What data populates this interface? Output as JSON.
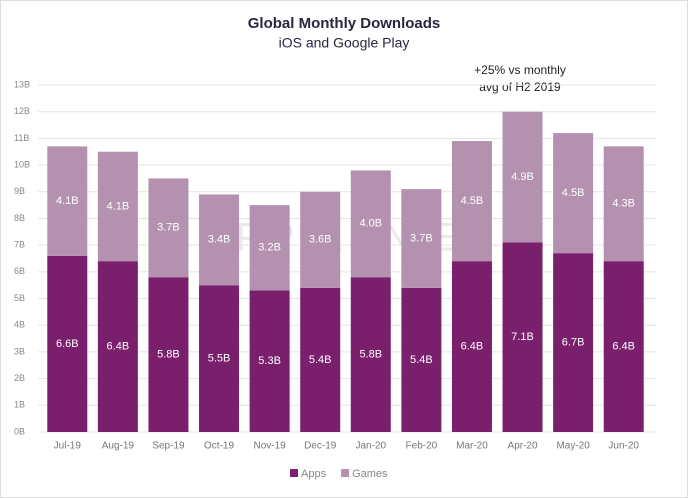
{
  "chart_data": {
    "type": "stacked-bar",
    "title": "Global Monthly Downloads",
    "subtitle": "iOS and Google Play",
    "annotation": [
      "+25% vs monthly",
      "avg of H2 2019"
    ],
    "watermark": "APP ANNIE",
    "categories": [
      "Jul-19",
      "Aug-19",
      "Sep-19",
      "Oct-19",
      "Nov-19",
      "Dec-19",
      "Jan-20",
      "Feb-20",
      "Mar-20",
      "Apr-20",
      "May-20",
      "Jun-20"
    ],
    "series": [
      {
        "name": "Apps",
        "color": "#7a1f6c",
        "values": [
          6.6,
          6.4,
          5.8,
          5.5,
          5.3,
          5.4,
          5.8,
          5.4,
          6.4,
          7.1,
          6.7,
          6.4
        ],
        "value_labels": [
          "6.6B",
          "6.4B",
          "5.8B",
          "5.5B",
          "5.3B",
          "5.4B",
          "5.8B",
          "5.4B",
          "6.4B",
          "7.1B",
          "6.7B",
          "6.4B"
        ]
      },
      {
        "name": "Games",
        "color": "#b591b0",
        "values": [
          4.1,
          4.1,
          3.7,
          3.4,
          3.2,
          3.6,
          4.0,
          3.7,
          4.5,
          4.9,
          4.5,
          4.3
        ],
        "value_labels": [
          "4.1B",
          "4.1B",
          "3.7B",
          "3.4B",
          "3.2B",
          "3.6B",
          "4.0B",
          "3.7B",
          "4.5B",
          "4.9B",
          "4.5B",
          "4.3B"
        ]
      }
    ],
    "ylim": [
      0,
      13
    ],
    "yticks": [
      {
        "value": 0,
        "label": "0B"
      },
      {
        "value": 1,
        "label": "1B"
      },
      {
        "value": 2,
        "label": "2B"
      },
      {
        "value": 3,
        "label": "3B"
      },
      {
        "value": 4,
        "label": "4B"
      },
      {
        "value": 5,
        "label": "5B"
      },
      {
        "value": 6,
        "label": "6B"
      },
      {
        "value": 7,
        "label": "7B"
      },
      {
        "value": 8,
        "label": "8B"
      },
      {
        "value": 9,
        "label": "9B"
      },
      {
        "value": 10,
        "label": "10B"
      },
      {
        "value": 11,
        "label": "11B"
      },
      {
        "value": 12,
        "label": "12B"
      },
      {
        "value": 13,
        "label": "13B"
      }
    ],
    "grid": true,
    "legend": "bottom"
  }
}
